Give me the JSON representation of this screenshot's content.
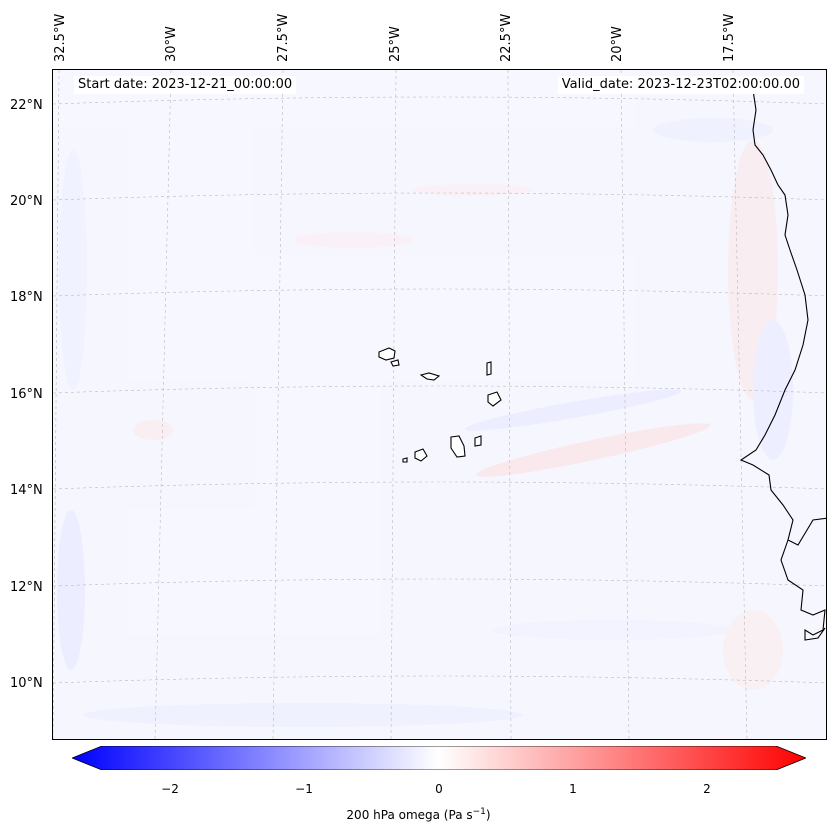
{
  "map": {
    "start_date": "Start date: 2023-12-21_00:00:00",
    "valid_date": "Valid_date: 2023-12-23T02:00:00.00",
    "lat_labels": [
      "22°N",
      "20°N",
      "18°N",
      "16°N",
      "14°N",
      "12°N",
      "10°N"
    ],
    "lon_labels": [
      "32.5°W",
      "30°W",
      "27.5°W",
      "25°W",
      "22.5°W",
      "20°W",
      "17.5°W"
    ],
    "region": "Cape Verde Islands and West African coast",
    "coastline_color": "#000000",
    "background_color": "#f6f6ff"
  },
  "colorbar": {
    "ticks": [
      "−2",
      "−1",
      "0",
      "1",
      "2"
    ],
    "label_main": "200 hPa omega (Pa s",
    "label_sup": "−1",
    "label_end": ")",
    "vmin": -2.6,
    "vmax": 2.6,
    "negative_color": "#0000ff",
    "neutral_color": "#ffffff",
    "positive_color": "#ff0000"
  }
}
